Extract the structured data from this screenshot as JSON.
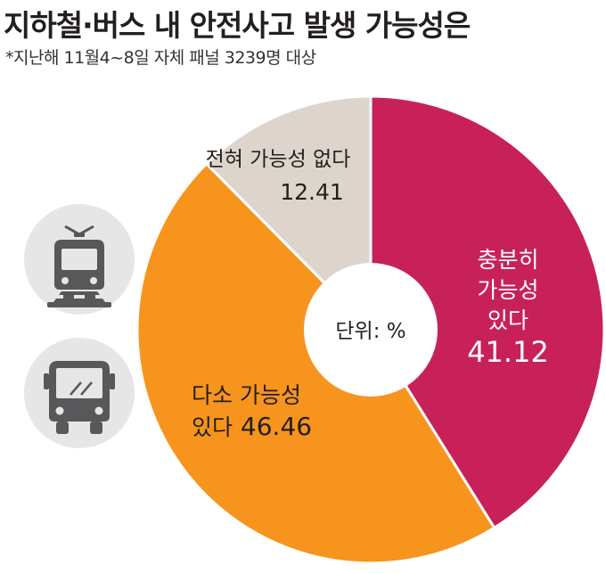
{
  "title": "지하철·버스 내 안전사고 발생 가능성은",
  "subtitle": "*지난해 11월4~8일 자체 패널 3239명 대상",
  "icons": [
    "train-icon",
    "bus-icon"
  ],
  "colors": {
    "sufficient": "#c8215a",
    "somewhat": "#f7941d",
    "none": "#ddd5cc",
    "icon_bg": "#e6e6e6",
    "icon_fg": "#58585a"
  },
  "chart_data": {
    "type": "pie",
    "donut": true,
    "center_label": "단위: %",
    "slices": [
      {
        "label_lines": [
          "충분히",
          "가능성",
          "있다"
        ],
        "value": 41.12,
        "value_text": "41.12",
        "color": "#c8215a",
        "text_color": "#ffffff"
      },
      {
        "label_lines": [
          "다소 가능성",
          "있다"
        ],
        "value": 46.46,
        "value_text": "46.46",
        "color": "#f7941d",
        "text_color": "#231f20"
      },
      {
        "label_lines": [
          "전혀 가능성 없다"
        ],
        "value": 12.41,
        "value_text": "12.41",
        "color": "#ddd5cc",
        "text_color": "#231f20"
      }
    ]
  }
}
